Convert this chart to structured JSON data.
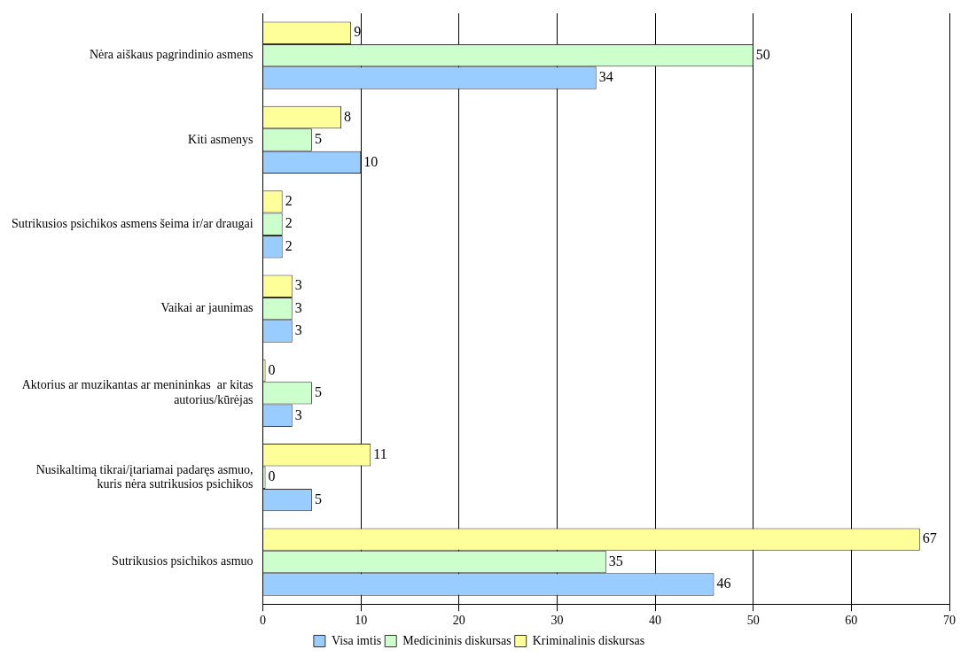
{
  "chart_data": {
    "type": "bar",
    "orientation": "horizontal",
    "categories": [
      "Nėra aiškaus pagrindinio asmens",
      "Kiti asmenys",
      "Sutrikusios psichikos asmens šeima ir/ar draugai",
      "Vaikai ar jaunimas",
      "Aktorius ar muzikantas ar menininkas  ar kitas autorius/kūrėjas",
      "Nusikaltimą tikrai/įtariamai padaręs asmuo, kuris nėra sutrikusios psichikos",
      "Sutrikusios psichikos asmuo"
    ],
    "series": [
      {
        "name": "Visa imtis",
        "color": "#99ccff",
        "values": [
          34,
          10,
          2,
          3,
          3,
          5,
          46
        ]
      },
      {
        "name": "Medicininis diskursas",
        "color": "#ccffcc",
        "values": [
          50,
          5,
          2,
          3,
          5,
          0,
          35
        ]
      },
      {
        "name": "Kriminalinis diskursas",
        "color": "#ffff99",
        "values": [
          9,
          8,
          2,
          3,
          0,
          11,
          67
        ]
      }
    ],
    "xlim": [
      0,
      70
    ],
    "xticks": [
      0,
      10,
      20,
      30,
      40,
      50,
      60,
      70
    ],
    "grid": "x",
    "legend": "bottom",
    "data_labels": true
  }
}
